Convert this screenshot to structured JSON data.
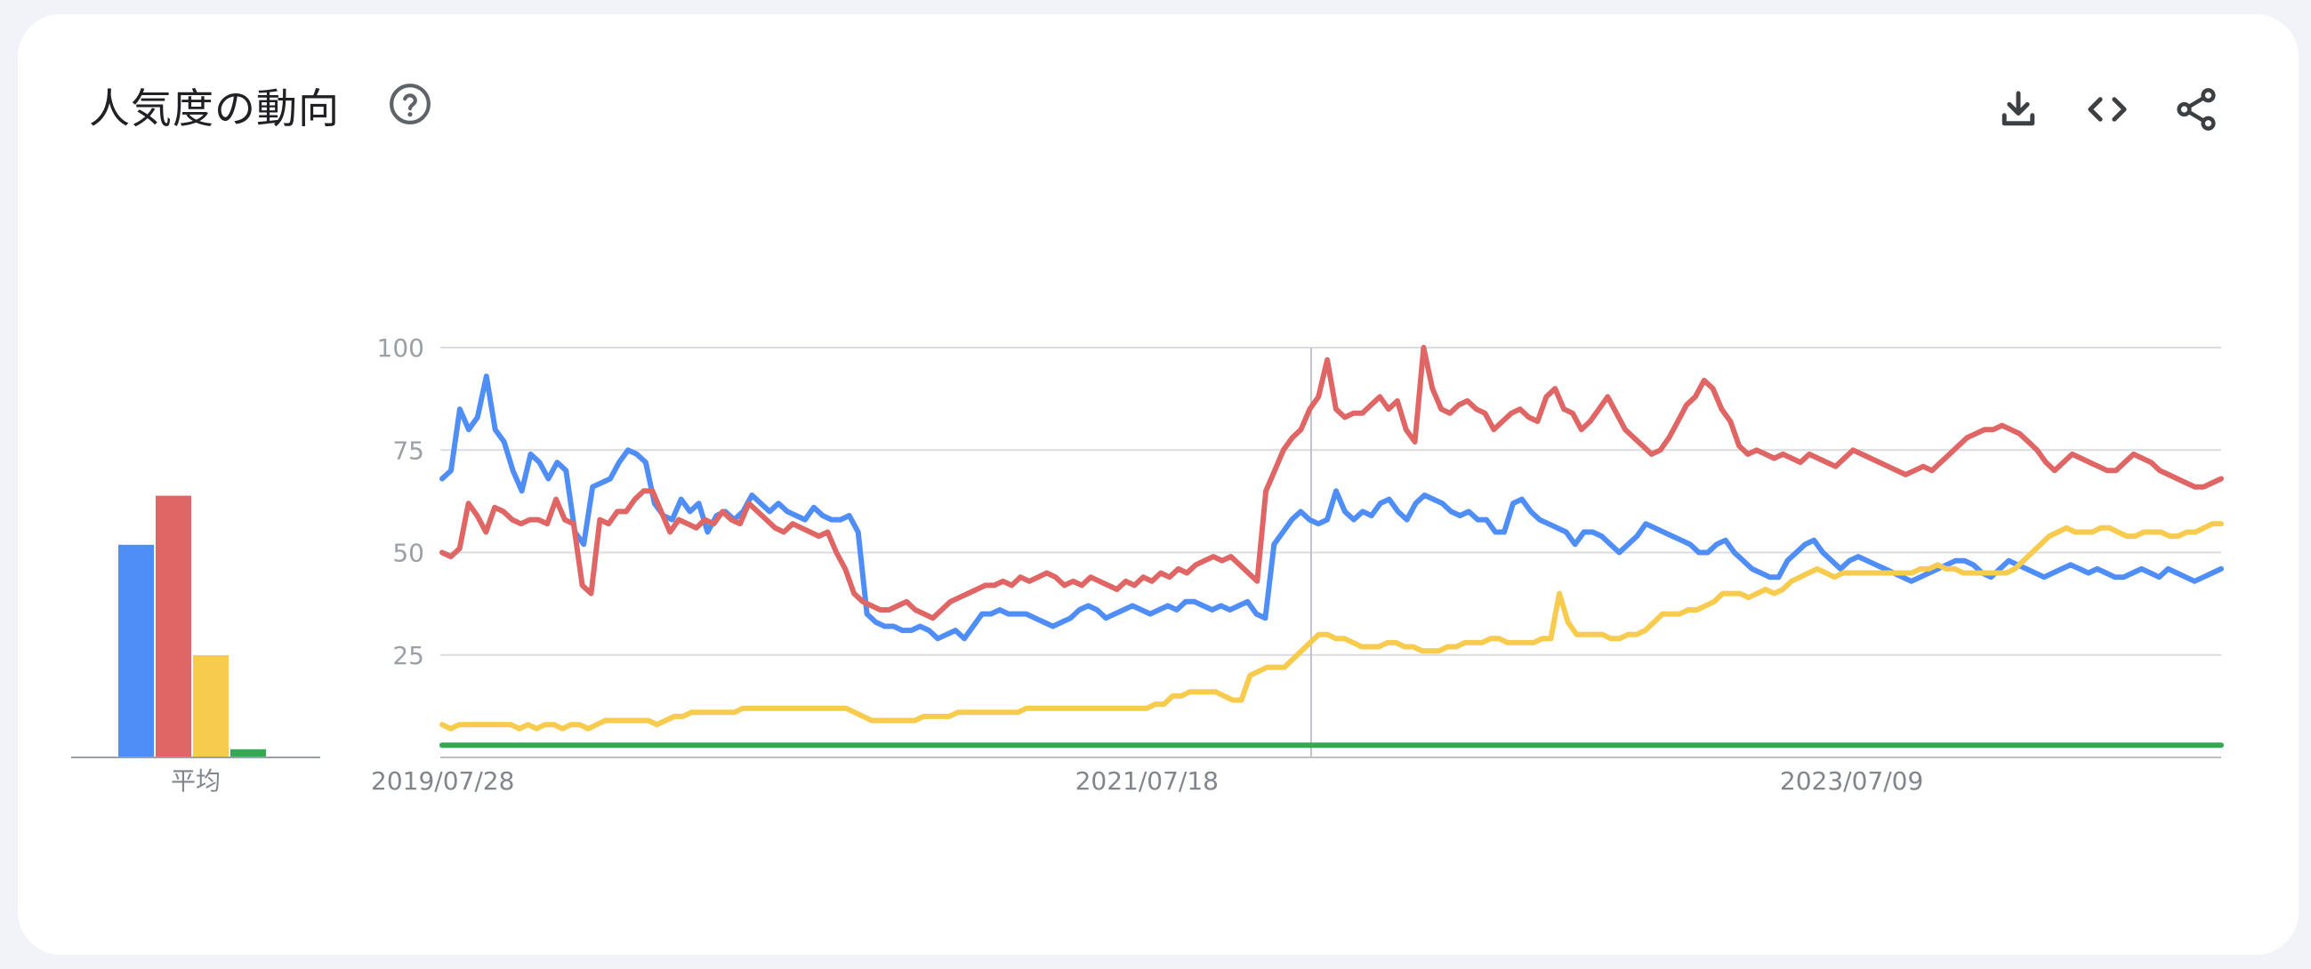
{
  "header": {
    "title": "人気度の動向",
    "help_icon": "help-circle-icon",
    "tools": [
      {
        "name": "download-icon"
      },
      {
        "name": "embed-code-icon"
      },
      {
        "name": "share-icon"
      }
    ]
  },
  "chart_data": {
    "type": "line",
    "title": "",
    "xlabel": "",
    "ylabel": "",
    "ylim": [
      0,
      100
    ],
    "yticks": [
      25,
      50,
      75,
      100
    ],
    "grid": true,
    "legend": "none",
    "x_tick_labels": [
      "2019/07/28",
      "2021/07/18",
      "2023/07/09"
    ],
    "x_start": "2019/07/28",
    "x_end": "2024/07/21",
    "partial_data_marker_date": "2022/01/02",
    "colors": [
      "#4f8ef7",
      "#e06666",
      "#f7cb4d",
      "#34a853"
    ],
    "series": [
      {
        "color": "#4f8ef7",
        "values": [
          68,
          70,
          85,
          80,
          83,
          93,
          80,
          77,
          70,
          65,
          74,
          72,
          68,
          72,
          70,
          55,
          52,
          66,
          67,
          68,
          72,
          75,
          74,
          72,
          62,
          59,
          58,
          63,
          60,
          62,
          55,
          59,
          60,
          58,
          60,
          64,
          62,
          60,
          62,
          60,
          59,
          58,
          61,
          59,
          58,
          58,
          59,
          55,
          35,
          33,
          32,
          32,
          31,
          31,
          32,
          31,
          29,
          30,
          31,
          29,
          32,
          35,
          35,
          36,
          35,
          35,
          35,
          34,
          33,
          32,
          33,
          34,
          36,
          37,
          36,
          34,
          35,
          36,
          37,
          36,
          35,
          36,
          37,
          36,
          38,
          38,
          37,
          36,
          37,
          36,
          37,
          38,
          35,
          34,
          52,
          55,
          58,
          60,
          58,
          57,
          58,
          65,
          60,
          58,
          60,
          59,
          62,
          63,
          60,
          58,
          62,
          64,
          63,
          62,
          60,
          59,
          60,
          58,
          58,
          55,
          55,
          62,
          63,
          60,
          58,
          57,
          56,
          55,
          52,
          55,
          55,
          54,
          52,
          50,
          52,
          54,
          57,
          56,
          55,
          54,
          53,
          52,
          50,
          50,
          52,
          53,
          50,
          48,
          46,
          45,
          44,
          44,
          48,
          50,
          52,
          53,
          50,
          48,
          46,
          48,
          49,
          48,
          47,
          46,
          45,
          44,
          43,
          44,
          45,
          46,
          47,
          48,
          48,
          47,
          45,
          44,
          46,
          48,
          47,
          46,
          45,
          44,
          45,
          46,
          47,
          46,
          45,
          46,
          45,
          44,
          44,
          45,
          46,
          45,
          44,
          46,
          45,
          44,
          43,
          44,
          45,
          46
        ]
      },
      {
        "color": "#e06666",
        "values": [
          50,
          49,
          51,
          62,
          59,
          55,
          61,
          60,
          58,
          57,
          58,
          58,
          57,
          63,
          58,
          57,
          42,
          40,
          58,
          57,
          60,
          60,
          63,
          65,
          65,
          60,
          55,
          58,
          57,
          56,
          58,
          57,
          60,
          58,
          57,
          62,
          60,
          58,
          56,
          55,
          57,
          56,
          55,
          54,
          55,
          50,
          46,
          40,
          38,
          37,
          36,
          36,
          37,
          38,
          36,
          35,
          34,
          36,
          38,
          39,
          40,
          41,
          42,
          42,
          43,
          42,
          44,
          43,
          44,
          45,
          44,
          42,
          43,
          42,
          44,
          43,
          42,
          41,
          43,
          42,
          44,
          43,
          45,
          44,
          46,
          45,
          47,
          48,
          49,
          48,
          49,
          47,
          45,
          43,
          65,
          70,
          75,
          78,
          80,
          85,
          88,
          97,
          85,
          83,
          84,
          84,
          86,
          88,
          85,
          87,
          80,
          77,
          100,
          90,
          85,
          84,
          86,
          87,
          85,
          84,
          80,
          82,
          84,
          85,
          83,
          82,
          88,
          90,
          85,
          84,
          80,
          82,
          85,
          88,
          84,
          80,
          78,
          76,
          74,
          75,
          78,
          82,
          86,
          88,
          92,
          90,
          85,
          82,
          76,
          74,
          75,
          74,
          73,
          74,
          73,
          72,
          74,
          73,
          72,
          71,
          73,
          75,
          74,
          73,
          72,
          71,
          70,
          69,
          70,
          71,
          70,
          72,
          74,
          76,
          78,
          79,
          80,
          80,
          81,
          80,
          79,
          77,
          75,
          72,
          70,
          72,
          74,
          73,
          72,
          71,
          70,
          70,
          72,
          74,
          73,
          72,
          70,
          69,
          68,
          67,
          66,
          66,
          67,
          68
        ]
      },
      {
        "color": "#f7cb4d",
        "values": [
          8,
          7,
          8,
          8,
          8,
          8,
          8,
          8,
          8,
          7,
          8,
          7,
          8,
          8,
          7,
          8,
          8,
          7,
          8,
          9,
          9,
          9,
          9,
          9,
          9,
          8,
          9,
          10,
          10,
          11,
          11,
          11,
          11,
          11,
          11,
          12,
          12,
          12,
          12,
          12,
          12,
          12,
          12,
          12,
          12,
          12,
          12,
          12,
          11,
          10,
          9,
          9,
          9,
          9,
          9,
          9,
          10,
          10,
          10,
          10,
          11,
          11,
          11,
          11,
          11,
          11,
          11,
          11,
          12,
          12,
          12,
          12,
          12,
          12,
          12,
          12,
          12,
          12,
          12,
          12,
          12,
          12,
          12,
          13,
          13,
          15,
          15,
          16,
          16,
          16,
          16,
          15,
          14,
          14,
          20,
          21,
          22,
          22,
          22,
          24,
          26,
          28,
          30,
          30,
          29,
          29,
          28,
          27,
          27,
          27,
          28,
          28,
          27,
          27,
          26,
          26,
          26,
          27,
          27,
          28,
          28,
          28,
          29,
          29,
          28,
          28,
          28,
          28,
          29,
          29,
          40,
          33,
          30,
          30,
          30,
          30,
          29,
          29,
          30,
          30,
          31,
          33,
          35,
          35,
          35,
          36,
          36,
          37,
          38,
          40,
          40,
          40,
          39,
          40,
          41,
          40,
          41,
          43,
          44,
          45,
          46,
          45,
          44,
          45,
          45,
          45,
          45,
          45,
          45,
          45,
          45,
          45,
          46,
          46,
          47,
          46,
          46,
          45,
          45,
          45,
          45,
          45,
          45,
          46,
          48,
          50,
          52,
          54,
          55,
          56,
          55,
          55,
          55,
          56,
          56,
          55,
          54,
          54,
          55,
          55,
          55,
          54,
          54,
          55,
          55,
          56,
          57,
          57
        ]
      },
      {
        "color": "#34a853",
        "values": [
          3,
          3,
          3,
          3,
          3,
          3,
          3,
          3,
          3,
          3,
          3,
          3,
          3,
          3,
          3,
          3,
          3,
          3,
          3,
          3,
          3,
          3,
          3,
          3,
          3,
          3,
          3,
          3,
          3,
          3,
          3,
          3,
          3,
          3,
          3,
          3,
          3,
          3,
          3,
          3,
          3,
          3,
          3,
          3,
          3,
          3,
          3,
          3,
          3,
          3,
          3,
          3,
          3,
          3,
          3,
          3,
          3,
          3,
          3,
          3,
          3,
          3,
          3,
          3,
          3,
          3,
          3,
          3,
          3,
          3,
          3,
          3,
          3,
          3,
          3,
          3,
          3,
          3,
          3,
          3,
          3,
          3,
          3,
          3,
          3,
          3,
          3,
          3,
          3,
          3,
          3,
          3,
          3,
          3,
          3,
          3,
          3,
          3,
          3,
          3,
          3,
          3,
          3,
          3,
          3,
          3,
          3,
          3,
          3,
          3,
          3,
          3,
          3,
          3,
          3,
          3,
          3,
          3,
          3,
          3,
          3,
          3,
          3,
          3,
          3,
          3,
          3,
          3,
          3,
          3,
          3,
          3,
          3,
          3,
          3,
          3,
          3,
          3,
          3,
          3,
          3,
          3,
          3,
          3,
          3,
          3,
          3,
          3,
          3,
          3,
          3,
          3,
          3,
          3,
          3,
          3,
          3,
          3,
          3,
          3,
          3,
          3,
          3,
          3,
          3,
          3,
          3,
          3,
          3,
          3,
          3,
          3,
          3,
          3,
          3,
          3,
          3,
          3,
          3,
          3,
          3,
          3,
          3,
          3,
          3,
          3,
          3,
          3,
          3,
          3,
          3,
          3,
          3,
          3,
          3,
          3,
          3,
          3,
          3,
          3,
          3,
          3,
          3,
          3,
          3,
          3
        ]
      }
    ],
    "average": {
      "label": "平均",
      "values": [
        52,
        64,
        25,
        2
      ]
    }
  }
}
